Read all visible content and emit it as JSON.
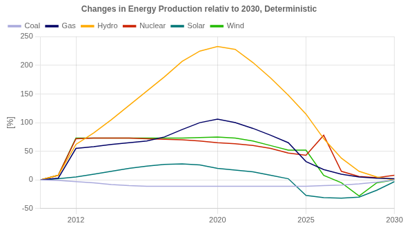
{
  "chart_data": {
    "type": "line",
    "title": "Changes in Energy Production relativ to 2030, Deterministic",
    "y_label": "[%]",
    "x": [
      2010,
      2011,
      2012,
      2013,
      2014,
      2015,
      2016,
      2017,
      2018,
      2019,
      2020,
      2021,
      2022,
      2023,
      2024,
      2025,
      2026,
      2027,
      2028,
      2029,
      2030
    ],
    "xlim": [
      2010,
      2030
    ],
    "xticks": [
      2012,
      2020,
      2025,
      2030
    ],
    "ylim": [
      -50,
      250
    ],
    "yticks": [
      -50,
      0,
      50,
      100,
      150,
      200,
      250
    ],
    "grid": true,
    "legend": "upper left",
    "series": [
      {
        "name": "Coal",
        "color": "#aaaadd",
        "values": [
          0,
          -1,
          -3,
          -5,
          -8,
          -10,
          -11,
          -11,
          -11,
          -11,
          -11,
          -11,
          -11,
          -11,
          -11,
          -11,
          -10,
          -9,
          -7,
          -4,
          0
        ]
      },
      {
        "name": "Gas",
        "color": "#000066",
        "values": [
          0,
          3,
          55,
          58,
          62,
          65,
          68,
          75,
          88,
          100,
          106,
          100,
          90,
          78,
          65,
          32,
          18,
          10,
          5,
          3,
          2
        ]
      },
      {
        "name": "Hydro",
        "color": "#ffaa00",
        "values": [
          0,
          8,
          62,
          82,
          105,
          130,
          155,
          180,
          207,
          225,
          233,
          228,
          205,
          178,
          148,
          115,
          72,
          38,
          15,
          5,
          0
        ]
      },
      {
        "name": "Nuclear",
        "color": "#cc2200",
        "values": [
          0,
          8,
          72,
          73,
          73,
          73,
          72,
          71,
          70,
          68,
          65,
          63,
          60,
          55,
          47,
          43,
          78,
          15,
          6,
          4,
          8
        ]
      },
      {
        "name": "Solar",
        "color": "#007777",
        "values": [
          0,
          2,
          5,
          10,
          15,
          20,
          24,
          27,
          28,
          26,
          20,
          17,
          14,
          8,
          2,
          -27,
          -31,
          -32,
          -30,
          -18,
          -3
        ]
      },
      {
        "name": "Wind",
        "color": "#22bb00",
        "values": [
          0,
          8,
          73,
          73,
          73,
          73,
          73,
          73,
          73,
          74,
          75,
          73,
          68,
          60,
          52,
          52,
          8,
          -5,
          -28,
          -5,
          0
        ]
      }
    ]
  }
}
